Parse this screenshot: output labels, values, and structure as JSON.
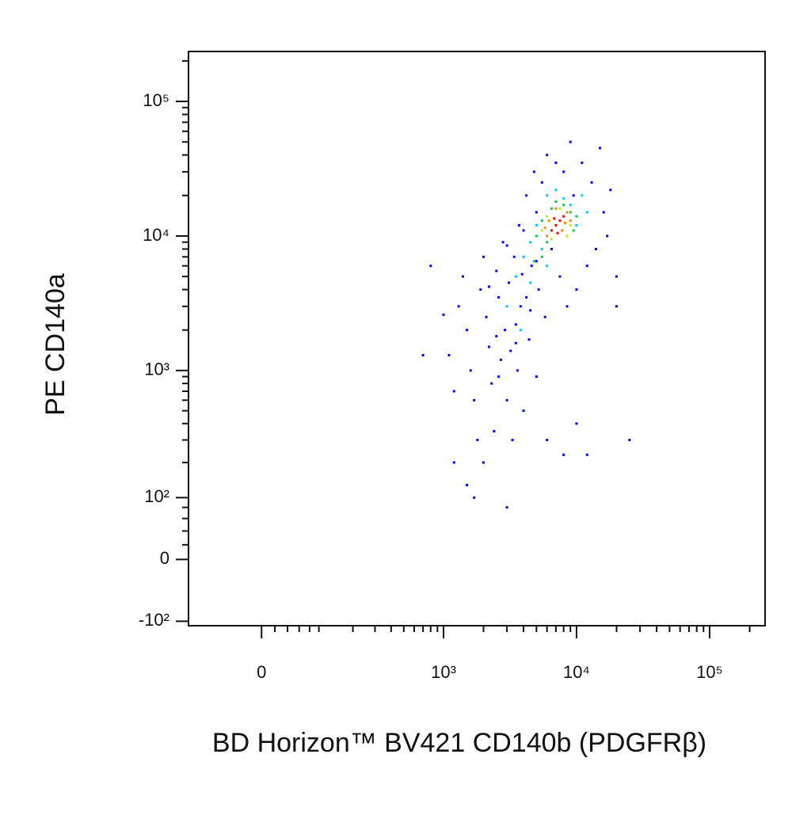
{
  "chart_data": {
    "type": "scatter",
    "xlabel": "BD Horizon™ BV421 CD140b (PDGFRβ)",
    "ylabel": "PE CD140a",
    "xscale": "biexponential",
    "yscale": "biexponential",
    "xlim": [
      -140,
      261000
    ],
    "ylim": [
      -110,
      235000
    ],
    "xticks": [
      0,
      {
        "value": 1000,
        "label": "10³"
      },
      {
        "value": 10000,
        "label": "10⁴"
      },
      {
        "value": 100000,
        "label": "10⁵"
      }
    ],
    "yticks": [
      {
        "value": -100,
        "label": "-10²"
      },
      0,
      {
        "value": 100,
        "label": "10²"
      },
      {
        "value": 1000,
        "label": "10³"
      },
      {
        "value": 10000,
        "label": "10⁴"
      },
      {
        "value": 100000,
        "label": "10⁵"
      }
    ],
    "xminor": [
      20,
      40,
      60,
      80,
      100,
      200,
      300,
      400,
      500,
      600,
      700,
      800,
      900,
      2000,
      3000,
      4000,
      5000,
      6000,
      7000,
      8000,
      9000,
      20000,
      30000,
      40000,
      50000,
      60000,
      70000,
      80000,
      90000,
      200000
    ],
    "yminor": [
      20,
      40,
      60,
      80,
      200,
      300,
      400,
      500,
      600,
      700,
      800,
      900,
      2000,
      3000,
      4000,
      5000,
      6000,
      7000,
      8000,
      9000,
      20000,
      30000,
      40000,
      50000,
      60000,
      70000,
      80000,
      90000,
      200000
    ],
    "series": [
      {
        "color": "#0000ff",
        "x": [
          700,
          800,
          1000,
          1100,
          1200,
          1300,
          1400,
          1500,
          1600,
          1700,
          1800,
          1900,
          2000,
          2100,
          2200,
          2300,
          2400,
          2500,
          2600,
          2700,
          2800,
          2900,
          3000,
          3100,
          3200,
          3300,
          3400,
          3500,
          3600,
          3700,
          3800,
          4000,
          4200,
          4400,
          4600,
          4800,
          5000,
          5200,
          5500,
          5800,
          6000,
          6500,
          7000,
          7500,
          8000,
          8500,
          9000,
          9500,
          10000,
          11000,
          12000,
          13000,
          14000,
          15000,
          16000,
          17000,
          18000,
          20000,
          20000,
          25000,
          3000,
          1700,
          1200,
          1500,
          2000,
          10000,
          12000,
          8000,
          6000,
          2500,
          3500,
          4500,
          5000,
          3900,
          2200,
          3000,
          4000,
          5000,
          4200,
          2600
        ],
        "values": [
          1300,
          6000,
          2600,
          1300,
          700,
          3000,
          5000,
          2000,
          1000,
          600,
          300,
          4000,
          7000,
          2500,
          1500,
          800,
          350,
          5500,
          3500,
          1200,
          9000,
          2000,
          600,
          4500,
          1400,
          300,
          7000,
          2200,
          1000,
          12000,
          3000,
          500,
          20000,
          1700,
          6000,
          30000,
          900,
          4000,
          25000,
          2500,
          40000,
          8000,
          35000,
          5000,
          30000,
          3000,
          50000,
          20000,
          4000,
          35000,
          6000,
          25000,
          8000,
          45000,
          15000,
          10000,
          22000,
          3000,
          5000,
          300,
          80,
          100,
          200,
          130,
          200,
          400,
          230,
          230,
          300,
          1800,
          1600,
          2800,
          6500,
          5200,
          4200,
          8500,
          11000,
          15000,
          3500,
          900
        ]
      },
      {
        "color": "#00c8ff",
        "x": [
          3000,
          3500,
          4000,
          4500,
          5000,
          5500,
          6000,
          7000,
          8000,
          9000,
          10000,
          11000,
          4500,
          6000,
          3800,
          12000
        ],
        "values": [
          3000,
          5000,
          7000,
          9000,
          12000,
          8000,
          20000,
          22000,
          19000,
          17000,
          12000,
          20000,
          4500,
          6000,
          2000,
          15000
        ]
      },
      {
        "color": "#00d040",
        "x": [
          5000,
          5500,
          6000,
          6500,
          7000,
          8000,
          9000,
          9500,
          5500,
          4800,
          10000
        ],
        "values": [
          10000,
          13000,
          9000,
          16000,
          18000,
          17000,
          15000,
          11000,
          7000,
          6500,
          14000
        ]
      },
      {
        "color": "#b4f000",
        "x": [
          6000,
          6500,
          7500,
          8500,
          9000,
          5500
        ],
        "values": [
          14000,
          9500,
          16000,
          10000,
          12000,
          11000
        ]
      },
      {
        "color": "#ff8800",
        "x": [
          6000,
          8500,
          7800,
          6200,
          9000,
          7000,
          5800,
          8200
        ],
        "values": [
          10000,
          15000,
          11000,
          13000,
          13000,
          16000,
          11500,
          12500
        ]
      },
      {
        "color": "#ff0000",
        "x": [
          7000,
          7500,
          6500,
          8000,
          7200,
          6800
        ],
        "values": [
          12000,
          13000,
          11000,
          14000,
          10500,
          13500
        ]
      }
    ]
  }
}
